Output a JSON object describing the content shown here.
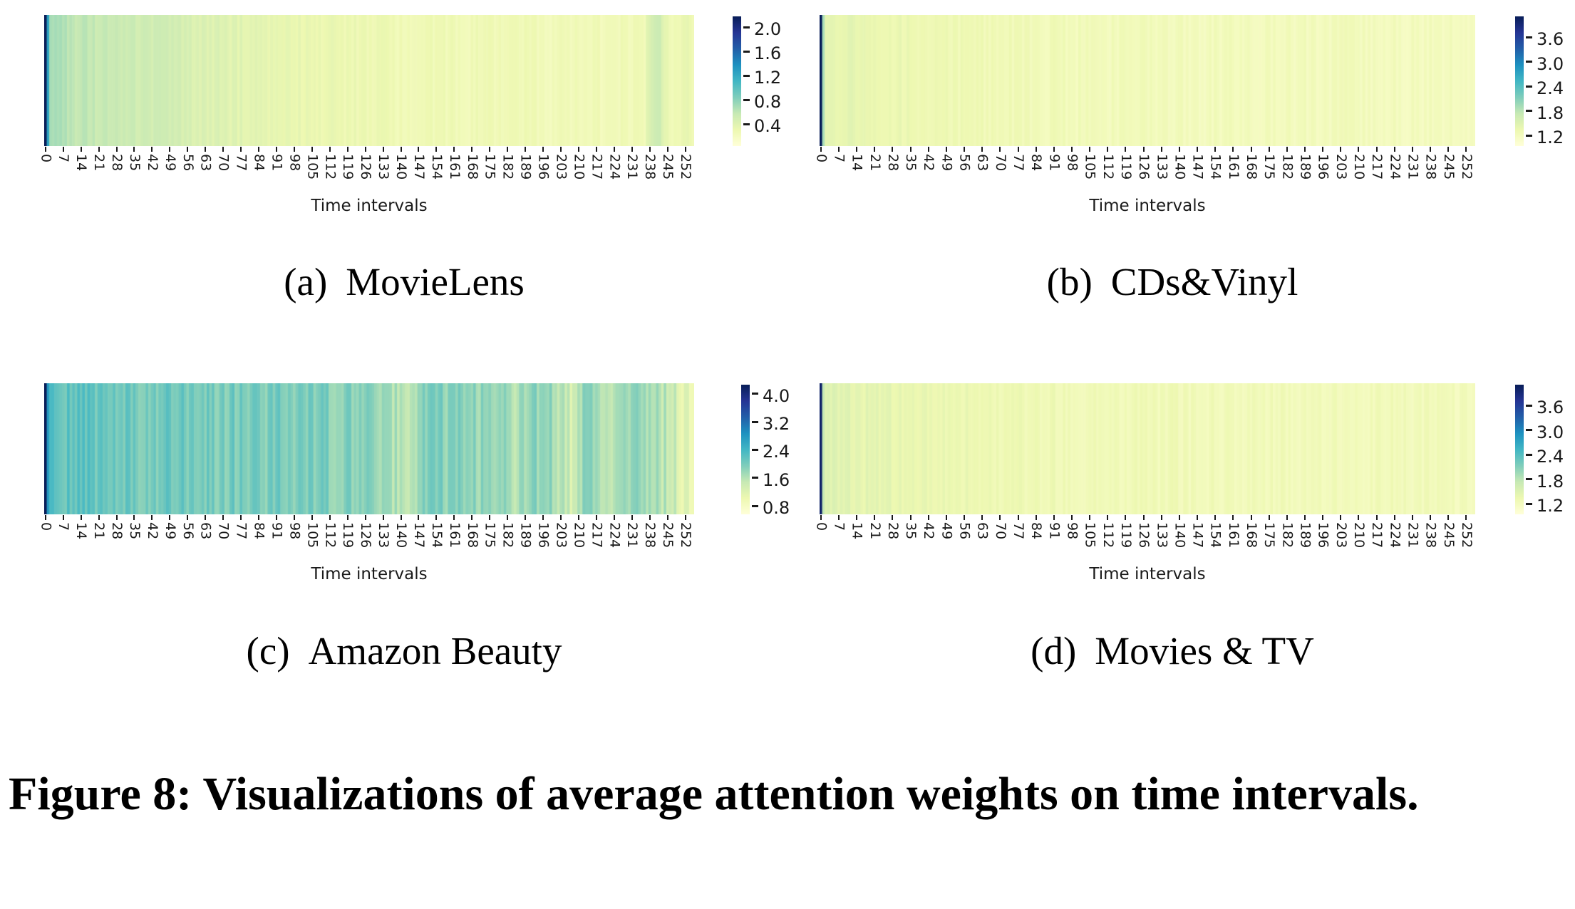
{
  "figure_caption": "Figure 8: Visualizations of average attention weights on time intervals.",
  "colormap": {
    "name": "YlGnBu",
    "stops_light_to_dark": [
      "#ffffd9",
      "#edf8b1",
      "#c7e9b4",
      "#7fcdbb",
      "#41b6c4",
      "#1d91c0",
      "#225ea8",
      "#253494",
      "#081d58"
    ],
    "first_column_color": "#122c6e",
    "pale_background_color": "#f4f9d0"
  },
  "xtick_labels": [
    0,
    7,
    14,
    21,
    28,
    35,
    42,
    49,
    56,
    63,
    70,
    77,
    84,
    91,
    98,
    105,
    112,
    119,
    126,
    133,
    140,
    147,
    154,
    161,
    168,
    175,
    182,
    189,
    196,
    203,
    210,
    217,
    224,
    231,
    238,
    245,
    252
  ],
  "chart_data": [
    {
      "type": "heatmap",
      "caption_index": "(a)",
      "caption_title": "MovieLens",
      "xlabel": "Time intervals",
      "n_columns": 256,
      "n_rows": 1,
      "value_range": {
        "min": 0.04,
        "max": 2.18
      },
      "colorbar_tick_labels": [
        "2.0",
        "1.6",
        "1.2",
        "0.8",
        "0.4"
      ],
      "colorbar_tick_values": [
        2.0,
        1.6,
        1.2,
        0.8,
        0.4
      ],
      "stripe_amplitude": 0.05,
      "column_value_anchors": [
        [
          0,
          2.18
        ],
        [
          1,
          1.25
        ],
        [
          2,
          0.72
        ],
        [
          6,
          0.66
        ],
        [
          12,
          0.6
        ],
        [
          20,
          0.57
        ],
        [
          30,
          0.55
        ],
        [
          45,
          0.5
        ],
        [
          60,
          0.44
        ],
        [
          80,
          0.38
        ],
        [
          100,
          0.33
        ],
        [
          120,
          0.3
        ],
        [
          140,
          0.28
        ],
        [
          160,
          0.27
        ],
        [
          180,
          0.26
        ],
        [
          200,
          0.25
        ],
        [
          215,
          0.25
        ],
        [
          228,
          0.26
        ],
        [
          236,
          0.28
        ],
        [
          239,
          0.52
        ],
        [
          241,
          0.55
        ],
        [
          243,
          0.45
        ],
        [
          246,
          0.28
        ],
        [
          252,
          0.32
        ],
        [
          255,
          0.3
        ]
      ]
    },
    {
      "type": "heatmap",
      "caption_index": "(b)",
      "caption_title": "CDs&Vinyl",
      "xlabel": "Time intervals",
      "n_columns": 256,
      "n_rows": 1,
      "value_range": {
        "min": 0.94,
        "max": 4.11
      },
      "colorbar_tick_labels": [
        "3.6",
        "3.0",
        "2.4",
        "1.8",
        "1.2"
      ],
      "colorbar_tick_values": [
        3.6,
        3.0,
        2.4,
        1.8,
        1.2
      ],
      "stripe_amplitude": 0.07,
      "column_value_anchors": [
        [
          0,
          4.11
        ],
        [
          1,
          1.9
        ],
        [
          2,
          1.45
        ],
        [
          8,
          1.42
        ],
        [
          20,
          1.38
        ],
        [
          40,
          1.32
        ],
        [
          70,
          1.27
        ],
        [
          100,
          1.24
        ],
        [
          140,
          1.22
        ],
        [
          180,
          1.22
        ],
        [
          220,
          1.21
        ],
        [
          255,
          1.2
        ]
      ]
    },
    {
      "type": "heatmap",
      "caption_index": "(c)",
      "caption_title": "Amazon Beauty",
      "xlabel": "Time intervals",
      "n_columns": 256,
      "n_rows": 1,
      "value_range": {
        "min": 0.56,
        "max": 4.26
      },
      "colorbar_tick_labels": [
        "4.0",
        "3.2",
        "2.4",
        "1.6",
        "0.8"
      ],
      "colorbar_tick_values": [
        4.0,
        3.2,
        2.4,
        1.6,
        0.8
      ],
      "stripe_amplitude": 0.22,
      "column_value_anchors": [
        [
          0,
          4.26
        ],
        [
          1,
          2.75
        ],
        [
          2,
          2.2
        ],
        [
          10,
          2.15
        ],
        [
          25,
          2.1
        ],
        [
          40,
          2.05
        ],
        [
          60,
          2.0
        ],
        [
          80,
          2.0
        ],
        [
          100,
          1.95
        ],
        [
          115,
          1.9
        ],
        [
          130,
          1.8
        ],
        [
          140,
          1.55
        ],
        [
          150,
          1.9
        ],
        [
          165,
          1.85
        ],
        [
          180,
          1.85
        ],
        [
          186,
          1.55
        ],
        [
          190,
          1.9
        ],
        [
          200,
          1.75
        ],
        [
          207,
          1.35
        ],
        [
          212,
          1.8
        ],
        [
          220,
          1.7
        ],
        [
          225,
          1.6
        ],
        [
          230,
          1.85
        ],
        [
          238,
          1.7
        ],
        [
          246,
          1.5
        ],
        [
          252,
          1.15
        ],
        [
          255,
          1.05
        ]
      ]
    },
    {
      "type": "heatmap",
      "caption_index": "(d)",
      "caption_title": "Movies & TV",
      "xlabel": "Time intervals",
      "n_columns": 256,
      "n_rows": 1,
      "value_range": {
        "min": 0.94,
        "max": 4.11
      },
      "colorbar_tick_labels": [
        "3.6",
        "3.0",
        "2.4",
        "1.8",
        "1.2"
      ],
      "colorbar_tick_values": [
        3.6,
        3.0,
        2.4,
        1.8,
        1.2
      ],
      "stripe_amplitude": 0.08,
      "column_value_anchors": [
        [
          0,
          4.0
        ],
        [
          1,
          1.75
        ],
        [
          2,
          1.5
        ],
        [
          10,
          1.45
        ],
        [
          25,
          1.4
        ],
        [
          50,
          1.35
        ],
        [
          80,
          1.3
        ],
        [
          120,
          1.27
        ],
        [
          160,
          1.25
        ],
        [
          200,
          1.24
        ],
        [
          240,
          1.23
        ],
        [
          255,
          1.22
        ]
      ]
    }
  ]
}
